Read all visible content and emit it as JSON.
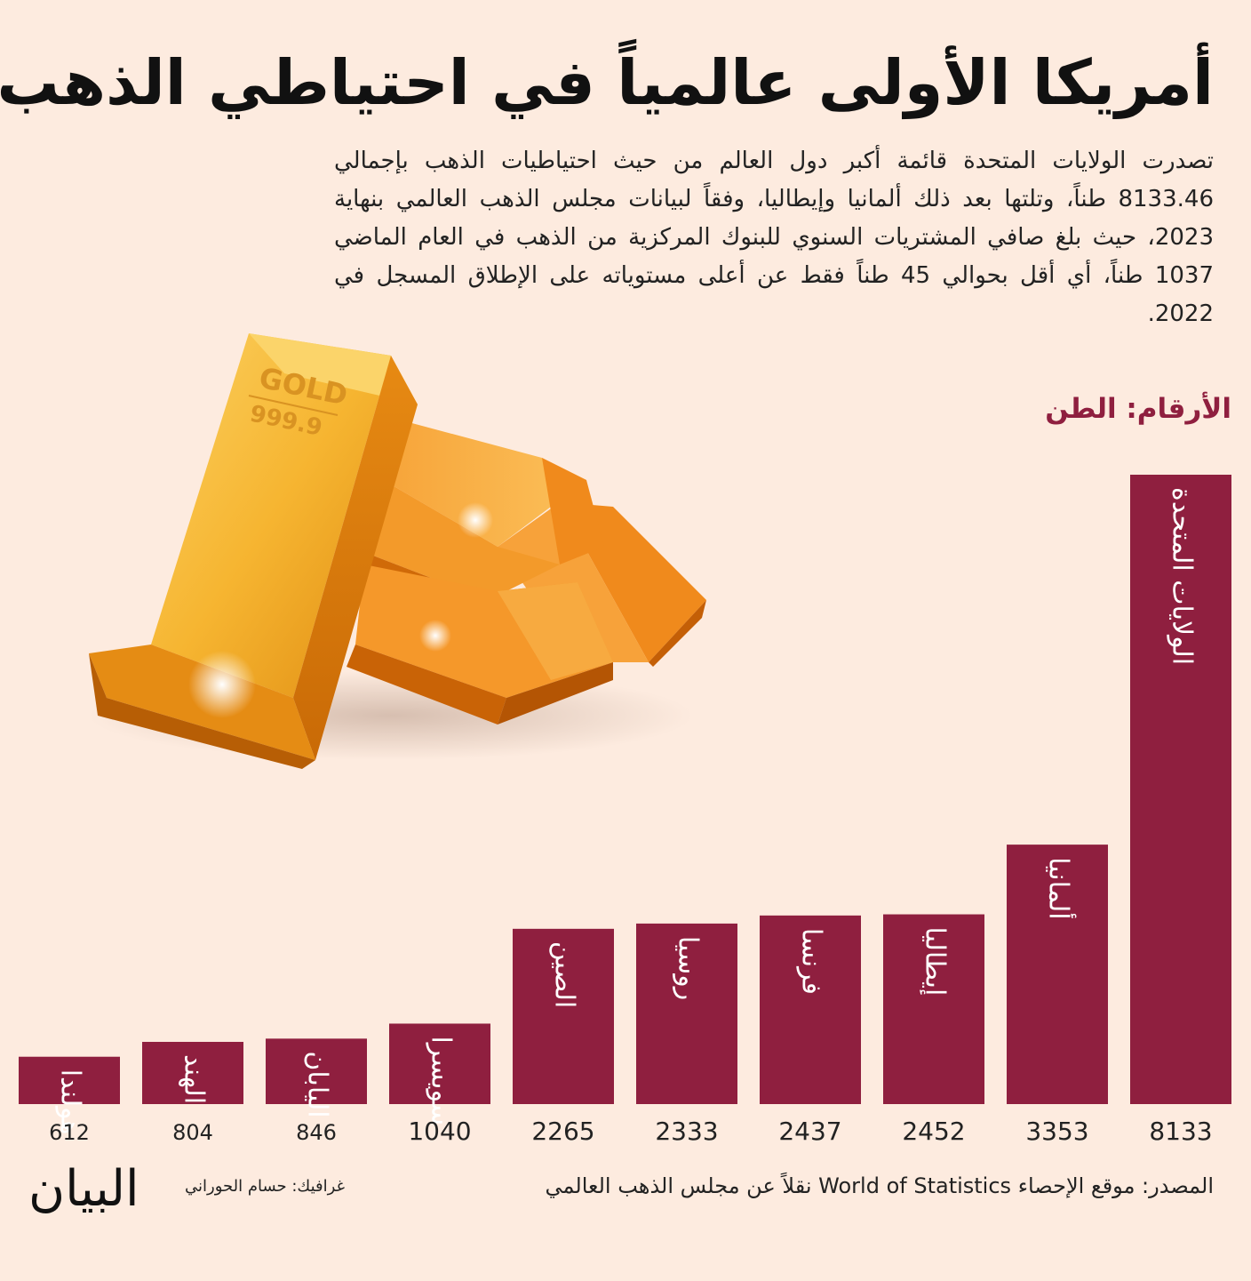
{
  "title": "أمريكا الأولى عالمياً في احتياطي الذهب",
  "subtitle": "تصدرت الولايات المتحدة قائمة أكبر دول العالم من حيث احتياطيات الذهب بإجمالي 8133.46 طناً، وتلتها بعد ذلك ألمانيا وإيطاليا، وفقاً لبيانات مجلس الذهب العالمي بنهاية 2023، حيث بلغ صافي المشتريات السنوي للبنوك المركزية من الذهب في العام الماضي 1037 طناً، أي أقل بحوالي 45 طناً فقط عن أعلى مستوياته على الإطلاق المسجل في 2022.",
  "unit_label": "الأرقام: الطن",
  "source": "المصدر: موقع الإحصاء World of Statistics نقلاً عن مجلس الذهب العالمي",
  "credit": "غرافيك: حسام الحوراني",
  "logo": "البيان",
  "gold_bar_text": [
    "GOLD",
    "999.9"
  ],
  "colors": {
    "background": "#fdebdf",
    "bar": "#8f1f3f",
    "accent": "#8f1f3f"
  },
  "chart_data": {
    "type": "bar",
    "categories": [
      "هولندا",
      "الهند",
      "اليابان",
      "سويسرا",
      "الصين",
      "روسيا",
      "فرنسا",
      "إيطاليا",
      "ألمانيا",
      "الولايات المتحدة"
    ],
    "values": [
      612,
      804,
      846,
      1040,
      2265,
      2333,
      2437,
      2452,
      3353,
      8133
    ],
    "ylabel": "",
    "ylim": [
      0,
      8133
    ],
    "grid": false,
    "legend": "none"
  }
}
